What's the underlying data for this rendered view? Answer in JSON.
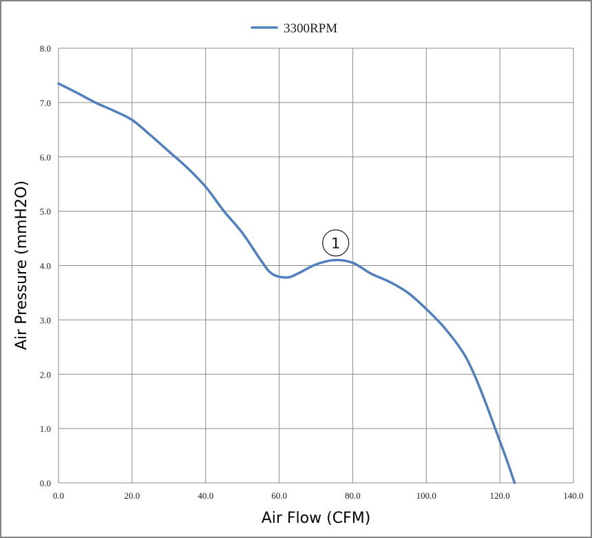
{
  "chart_data": {
    "type": "line",
    "title": "",
    "xlabel": "Air Flow (CFM)",
    "ylabel": "Air Pressure (mmH2O)",
    "xlim": [
      0,
      140
    ],
    "ylim": [
      0,
      8
    ],
    "xticks": [
      "0.0",
      "20.0",
      "40.0",
      "60.0",
      "80.0",
      "100.0",
      "120.0",
      "140.0"
    ],
    "yticks": [
      "0.0",
      "1.0",
      "2.0",
      "3.0",
      "4.0",
      "5.0",
      "6.0",
      "7.0",
      "8.0"
    ],
    "grid": true,
    "legend_position": "top-center",
    "series": [
      {
        "name": "3300RPM",
        "color": "#4f7fbf",
        "x": [
          0,
          5,
          10,
          15,
          20,
          25,
          30,
          35,
          40,
          45,
          50,
          55,
          58,
          62,
          65,
          70,
          75,
          80,
          85,
          90,
          95,
          100,
          105,
          110,
          113,
          116,
          119,
          122,
          124
        ],
        "y": [
          7.35,
          7.18,
          7.0,
          6.85,
          6.68,
          6.4,
          6.1,
          5.8,
          5.45,
          5.0,
          4.6,
          4.1,
          3.85,
          3.78,
          3.85,
          4.02,
          4.1,
          4.05,
          3.85,
          3.7,
          3.5,
          3.2,
          2.85,
          2.4,
          2.0,
          1.5,
          0.95,
          0.4,
          0.0
        ]
      }
    ],
    "annotations": [
      {
        "label": "1",
        "x": 75,
        "y": 4.1
      }
    ]
  }
}
